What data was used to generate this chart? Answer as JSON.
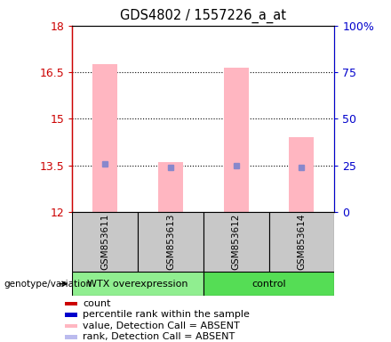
{
  "title": "GDS4802 / 1557226_a_at",
  "samples": [
    "GSM853611",
    "GSM853613",
    "GSM853612",
    "GSM853614"
  ],
  "bar_bottom": 12,
  "bar_tops_pink": [
    16.75,
    13.6,
    16.65,
    14.4
  ],
  "rank_dots": [
    13.55,
    13.45,
    13.5,
    13.45
  ],
  "ylim": [
    12,
    18
  ],
  "yticks_left": [
    12,
    13.5,
    15,
    16.5,
    18
  ],
  "yticks_right_vals": [
    0,
    25,
    50,
    75,
    100
  ],
  "yticks_right_pos": [
    12,
    13.5,
    15,
    16.5,
    18
  ],
  "left_axis_color": "#CC0000",
  "right_axis_color": "#0000CC",
  "pink_bar_color": "#FFB6C1",
  "blue_dot_color": "#8888CC",
  "sample_area_bg": "#C8C8C8",
  "group_spans": [
    [
      0,
      2,
      "WTX overexpression",
      "#90EE90"
    ],
    [
      2,
      4,
      "control",
      "#55DD55"
    ]
  ],
  "legend_colors": [
    "#CC0000",
    "#0000CC",
    "#FFB6C1",
    "#BBBBEE"
  ],
  "legend_labels": [
    "count",
    "percentile rank within the sample",
    "value, Detection Call = ABSENT",
    "rank, Detection Call = ABSENT"
  ]
}
